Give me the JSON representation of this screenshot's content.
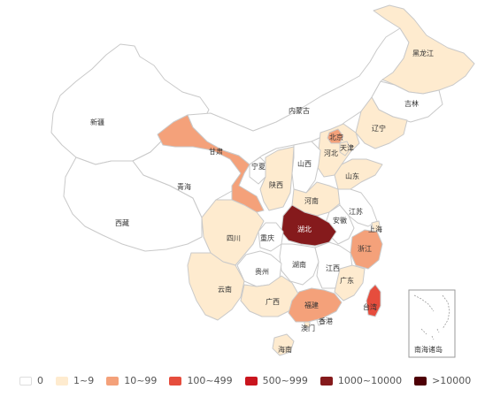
{
  "colors": {
    "c0": "#ffffff",
    "c1": "#feebcf",
    "c2": "#f4a17a",
    "c3": "#e64d3d",
    "c4": "#c9151e",
    "c5": "#851a1c",
    "c6": "#4e0006",
    "stroke": "#c9c9c9"
  },
  "provinces": [
    {
      "key": "xinjiang",
      "label": "新疆",
      "level": 0
    },
    {
      "key": "xizang",
      "label": "西藏",
      "level": 0
    },
    {
      "key": "qinghai",
      "label": "青海",
      "level": 0
    },
    {
      "key": "gansu",
      "label": "甘肃",
      "level": 2
    },
    {
      "key": "neimenggu",
      "label": "内蒙古",
      "level": 0
    },
    {
      "key": "heilongjiang",
      "label": "黑龙江",
      "level": 1
    },
    {
      "key": "jilin",
      "label": "吉林",
      "level": 0
    },
    {
      "key": "liaoning",
      "label": "辽宁",
      "level": 1
    },
    {
      "key": "beijing",
      "label": "北京",
      "level": 2
    },
    {
      "key": "tianjin",
      "label": "天津",
      "level": 1
    },
    {
      "key": "hebei",
      "label": "河北",
      "level": 1
    },
    {
      "key": "shanxi",
      "label": "山西",
      "level": 0
    },
    {
      "key": "shandong",
      "label": "山东",
      "level": 1
    },
    {
      "key": "ningxia",
      "label": "宁夏",
      "level": 0
    },
    {
      "key": "shaanxi",
      "label": "陕西",
      "level": 1
    },
    {
      "key": "henan",
      "label": "河南",
      "level": 1
    },
    {
      "key": "jiangsu",
      "label": "江苏",
      "level": 0
    },
    {
      "key": "anhui",
      "label": "安徽",
      "level": 0
    },
    {
      "key": "shanghai",
      "label": "上海",
      "level": 1
    },
    {
      "key": "hubei",
      "label": "湖北",
      "level": 5
    },
    {
      "key": "sichuan",
      "label": "四川",
      "level": 1
    },
    {
      "key": "chongqing",
      "label": "重庆",
      "level": 0
    },
    {
      "key": "zhejiang",
      "label": "浙江",
      "level": 2
    },
    {
      "key": "hunan",
      "label": "湖南",
      "level": 0
    },
    {
      "key": "jiangxi",
      "label": "江西",
      "level": 0
    },
    {
      "key": "guizhou",
      "label": "贵州",
      "level": 0
    },
    {
      "key": "yunnan",
      "label": "云南",
      "level": 1
    },
    {
      "key": "guangxi",
      "label": "广西",
      "level": 1
    },
    {
      "key": "guangdong",
      "label": "广东",
      "level": 2
    },
    {
      "key": "fujian",
      "label": "福建",
      "level": 1
    },
    {
      "key": "taiwan",
      "label": "台湾",
      "level": 3
    },
    {
      "key": "hongkong",
      "label": "香港",
      "level": 0
    },
    {
      "key": "macau",
      "label": "澳门",
      "level": 1
    },
    {
      "key": "hainan",
      "label": "海南",
      "level": 1
    }
  ],
  "inset": {
    "label": "南海诸岛"
  },
  "legend": [
    {
      "label": "0",
      "level": 0
    },
    {
      "label": "1~9",
      "level": 1
    },
    {
      "label": "10~99",
      "level": 2
    },
    {
      "label": "100~499",
      "level": 3
    },
    {
      "label": "500~999",
      "level": 4
    },
    {
      "label": "1000~10000",
      "level": 5
    },
    {
      "label": ">10000",
      "level": 6
    }
  ]
}
